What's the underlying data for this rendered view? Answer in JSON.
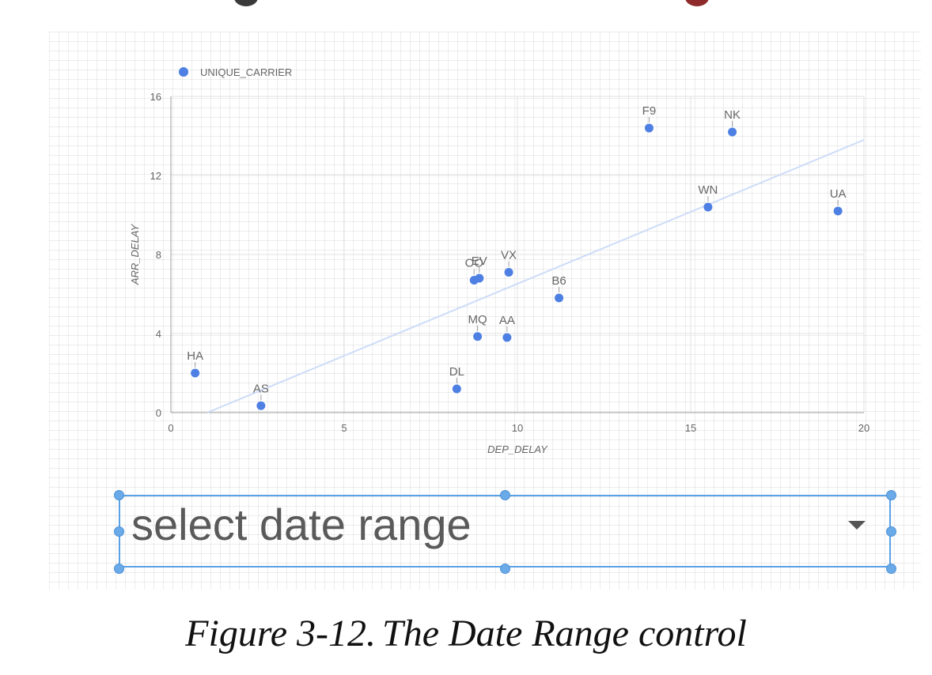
{
  "chart_data": {
    "type": "scatter",
    "legend": {
      "label": "UNIQUE_CARRIER",
      "placement": "top-left"
    },
    "xlabel": "DEP_DELAY",
    "ylabel": "ARR_DELAY",
    "xlim": [
      0,
      20
    ],
    "ylim": [
      0,
      16
    ],
    "x_ticks": [
      0,
      5,
      10,
      15,
      20
    ],
    "y_ticks": [
      0,
      4,
      8,
      12,
      16
    ],
    "grid": true,
    "point_color": "#4e7fe3",
    "trendline": {
      "color": "#cddcf8",
      "start": [
        1.05,
        0
      ],
      "end": [
        20,
        13.8
      ]
    },
    "points": [
      {
        "label": "HA",
        "x": 0.7,
        "y": 2.0
      },
      {
        "label": "AS",
        "x": 2.6,
        "y": 0.35
      },
      {
        "label": "DL",
        "x": 8.25,
        "y": 1.2
      },
      {
        "label": "MQ",
        "x": 8.85,
        "y": 3.85
      },
      {
        "label": "AA",
        "x": 9.7,
        "y": 3.8
      },
      {
        "label": "OO",
        "x": 8.75,
        "y": 6.7
      },
      {
        "label": "EV",
        "x": 8.9,
        "y": 6.8
      },
      {
        "label": "VX",
        "x": 9.75,
        "y": 7.1
      },
      {
        "label": "B6",
        "x": 11.2,
        "y": 5.8
      },
      {
        "label": "F9",
        "x": 13.8,
        "y": 14.4
      },
      {
        "label": "NK",
        "x": 16.2,
        "y": 14.2
      },
      {
        "label": "WN",
        "x": 15.5,
        "y": 10.4
      },
      {
        "label": "UA",
        "x": 19.25,
        "y": 10.2
      }
    ]
  },
  "control": {
    "placeholder": "select date range"
  },
  "caption": {
    "figure": "Figure 3-12.",
    "title": "The Date Range control"
  }
}
